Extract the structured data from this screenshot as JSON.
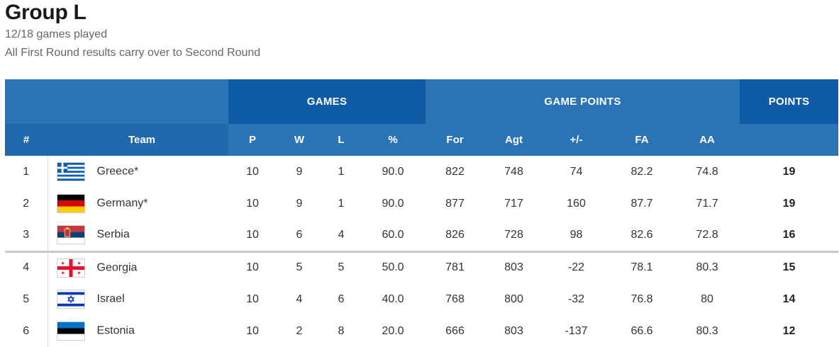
{
  "header": {
    "title": "Group L",
    "games_played": "12/18 games played",
    "note": "All First Round results carry over to Second Round"
  },
  "table": {
    "groups": {
      "games": "GAMES",
      "game_points": "GAME POINTS",
      "points": "POINTS"
    },
    "columns": {
      "pos": "#",
      "team": "Team",
      "p": "P",
      "w": "W",
      "l": "L",
      "pct": "%",
      "for": "For",
      "agt": "Agt",
      "diff": "+/-",
      "fa": "FA",
      "aa": "AA"
    },
    "rows": [
      {
        "pos": "1",
        "team": "Greece*",
        "flag_icon": "greece-flag-icon",
        "p": "10",
        "w": "9",
        "l": "1",
        "pct": "90.0",
        "for": "822",
        "agt": "748",
        "diff": "74",
        "fa": "82.2",
        "aa": "74.8",
        "pts": "19"
      },
      {
        "pos": "2",
        "team": "Germany*",
        "flag_icon": "germany-flag-icon",
        "p": "10",
        "w": "9",
        "l": "1",
        "pct": "90.0",
        "for": "877",
        "agt": "717",
        "diff": "160",
        "fa": "87.7",
        "aa": "71.7",
        "pts": "19"
      },
      {
        "pos": "3",
        "team": "Serbia",
        "flag_icon": "serbia-flag-icon",
        "p": "10",
        "w": "6",
        "l": "4",
        "pct": "60.0",
        "for": "826",
        "agt": "728",
        "diff": "98",
        "fa": "82.6",
        "aa": "72.8",
        "pts": "16"
      },
      {
        "pos": "4",
        "team": "Georgia",
        "flag_icon": "georgia-flag-icon",
        "p": "10",
        "w": "5",
        "l": "5",
        "pct": "50.0",
        "for": "781",
        "agt": "803",
        "diff": "-22",
        "fa": "78.1",
        "aa": "80.3",
        "pts": "15"
      },
      {
        "pos": "5",
        "team": "Israel",
        "flag_icon": "israel-flag-icon",
        "p": "10",
        "w": "4",
        "l": "6",
        "pct": "40.0",
        "for": "768",
        "agt": "800",
        "diff": "-32",
        "fa": "76.8",
        "aa": "80",
        "pts": "14"
      },
      {
        "pos": "6",
        "team": "Estonia",
        "flag_icon": "estonia-flag-icon",
        "p": "10",
        "w": "2",
        "l": "8",
        "pct": "20.0",
        "for": "666",
        "agt": "803",
        "diff": "-137",
        "fa": "66.6",
        "aa": "80.3",
        "pts": "12"
      }
    ]
  },
  "colors": {
    "header_light": "#2a73b5",
    "header_dark": "#0f5ba8",
    "cutoff_line": "#c9c9c9"
  }
}
